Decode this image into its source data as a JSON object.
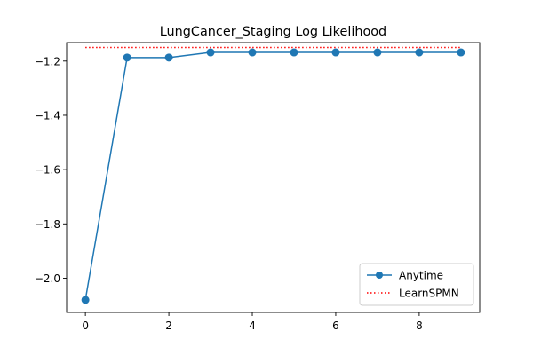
{
  "chart_data": {
    "type": "line",
    "title": "LungCancer_Staging Log Likelihood",
    "xlabel": "",
    "ylabel": "",
    "xlim": [
      -0.45,
      9.45
    ],
    "ylim": [
      -2.126,
      -1.132
    ],
    "x_ticks": [
      0,
      2,
      4,
      6,
      8
    ],
    "x_tick_labels": [
      "0",
      "2",
      "4",
      "6",
      "8"
    ],
    "y_ticks": [
      -2.0,
      -1.8,
      -1.6,
      -1.4,
      -1.2
    ],
    "y_tick_labels": [
      "−2.0",
      "−1.8",
      "−1.6",
      "−1.4",
      "−1.2"
    ],
    "grid": false,
    "legend_position": "lower-right",
    "series": [
      {
        "name": "Anytime",
        "style": "line-with-markers",
        "color": "#1f77b4",
        "x": [
          0,
          1,
          2,
          3,
          4,
          5,
          6,
          7,
          8,
          9
        ],
        "values": [
          -2.08,
          -1.187,
          -1.187,
          -1.168,
          -1.168,
          -1.168,
          -1.168,
          -1.168,
          -1.168,
          -1.168
        ]
      },
      {
        "name": "LearnSPMN",
        "style": "dotted",
        "color": "#ff0000",
        "x": [
          0,
          9
        ],
        "values": [
          -1.15,
          -1.15
        ]
      }
    ]
  }
}
